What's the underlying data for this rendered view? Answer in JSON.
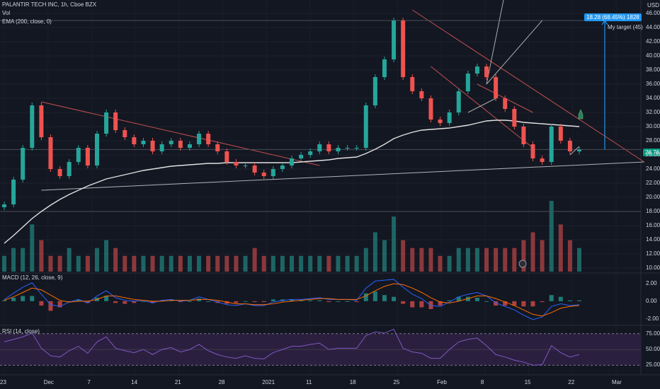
{
  "header": {
    "symbol": "PALANTIR TECH INC, 1h, Cboe BZX",
    "vol_label": "Vol",
    "ema_label": "EMA (200, close, 0)",
    "currency": "USD"
  },
  "macd_label": "MACD (12, 26, close, 9)",
  "rsi_label": "RSI (14, close)",
  "target_label": "My target (45)",
  "price_tag": "26.76",
  "measure_tag": "18.28 (68.45%) 1828",
  "colors": {
    "background": "#131722",
    "up": "#26a69a",
    "down": "#ef5350",
    "ema": "#e0e0e0",
    "trendline": "#c2504d",
    "support": "#b0b3ba",
    "macd": "#2962ff",
    "signal": "#ff6d00",
    "rsi": "#7e57c2",
    "rsi_band": "#2b1f3f",
    "target_line": "#2196f3",
    "price_tag": "#089981"
  },
  "chart_data": [
    {
      "type": "candlestick",
      "title": "PALANTIR TECH INC, 1h, Cboe BZX",
      "ylabel": "USD",
      "ylim": [
        9.5,
        47.5
      ],
      "y_ticks": [
        10,
        12,
        14,
        16,
        18,
        20,
        22,
        24,
        26,
        28,
        30,
        32,
        34,
        36,
        38,
        40,
        42,
        44,
        46
      ],
      "x_ticks": [
        "23",
        "Dec",
        "7",
        "14",
        "21",
        "28",
        "2021",
        "11",
        "18",
        "25",
        "Feb",
        "8",
        "15",
        "22",
        "Mar"
      ],
      "last_price": 26.76,
      "target_price": 45,
      "series": [
        {
          "name": "PALANTIR TECH INC",
          "values": [
            19.0,
            22.5,
            27.0,
            33.0,
            28.5,
            24.0,
            23.0,
            25.0,
            27.0,
            24.5,
            29.0,
            32.0,
            29.5,
            28.5,
            27.5,
            28.0,
            26.5,
            27.5,
            28.0,
            27.0,
            27.5,
            29.0,
            27.5,
            26.5,
            25.0,
            24.5,
            24.5,
            23.5,
            23.0,
            24.0,
            24.5,
            25.5,
            26.0,
            26.5,
            27.5,
            26.5,
            27.0,
            27.0,
            27.0,
            33.0,
            37.0,
            39.5,
            45.0,
            37.0,
            35.0,
            34.0,
            31.0,
            30.5,
            32.0,
            35.0,
            37.5,
            38.5,
            37.0,
            34.0,
            32.5,
            30.0,
            27.5,
            25.5,
            25.0,
            30.0,
            28.0,
            26.5,
            26.76
          ]
        },
        {
          "name": "EMA (200, close, 0)",
          "values": [
            13.5,
            14.6,
            15.8,
            17.0,
            18.0,
            18.9,
            19.7,
            20.4,
            21.0,
            21.6,
            22.1,
            22.6,
            22.9,
            23.2,
            23.5,
            23.8,
            24.0,
            24.2,
            24.4,
            24.5,
            24.6,
            24.7,
            24.8,
            24.8,
            24.9,
            24.9,
            24.9,
            24.9,
            24.9,
            24.9,
            24.9,
            24.9,
            25.0,
            25.1,
            25.2,
            25.3,
            25.5,
            25.6,
            25.7,
            26.2,
            26.8,
            27.5,
            28.3,
            28.8,
            29.2,
            29.5,
            29.6,
            29.7,
            29.8,
            30.0,
            30.2,
            30.5,
            30.8,
            30.9,
            30.9,
            30.8,
            30.6,
            30.5,
            30.4,
            30.3,
            30.2,
            30.1,
            30.0
          ]
        }
      ]
    },
    {
      "type": "bar",
      "title": "Vol",
      "series": [
        {
          "name": "Vol",
          "values": [
            2,
            3,
            3,
            6,
            4,
            2,
            2,
            3,
            2,
            2,
            3,
            4,
            3,
            2,
            2,
            2,
            2,
            2,
            2,
            2,
            2,
            2,
            2,
            2,
            2,
            2,
            2,
            3,
            2,
            2,
            2,
            2,
            2,
            2,
            2,
            2,
            2,
            2,
            2,
            3,
            5,
            4,
            7,
            4,
            3,
            3,
            3,
            2,
            2,
            3,
            3,
            3,
            3,
            3,
            3,
            3,
            4,
            5,
            4,
            9,
            6,
            4,
            3
          ]
        }
      ]
    },
    {
      "type": "line",
      "title": "MACD (12, 26, close, 9)",
      "ylim": [
        -2.6,
        2.9
      ],
      "y_ticks": [
        -2,
        0,
        2
      ],
      "series": [
        {
          "name": "MACD",
          "values": [
            0.2,
            0.9,
            1.6,
            2.1,
            0.8,
            -0.4,
            -0.6,
            -0.1,
            0.2,
            -0.2,
            0.6,
            1.2,
            0.4,
            0.1,
            0.0,
            0.1,
            -0.2,
            0.1,
            0.2,
            0.0,
            0.1,
            0.5,
            0.2,
            -0.1,
            -0.4,
            -0.5,
            -0.3,
            -0.5,
            -0.5,
            -0.1,
            0.1,
            0.2,
            0.2,
            0.3,
            0.4,
            0.2,
            0.2,
            0.2,
            0.1,
            1.5,
            2.3,
            2.4,
            2.5,
            1.6,
            0.8,
            0.3,
            -0.5,
            -0.6,
            -0.1,
            0.5,
            0.8,
            1.0,
            0.6,
            -0.2,
            -0.6,
            -1.0,
            -1.6,
            -2.1,
            -1.8,
            -0.6,
            -0.3,
            -0.5,
            -0.4
          ]
        },
        {
          "name": "Signal",
          "values": [
            0.1,
            0.5,
            1.0,
            1.5,
            1.3,
            0.7,
            0.1,
            -0.1,
            0.0,
            0.0,
            0.2,
            0.6,
            0.6,
            0.4,
            0.2,
            0.1,
            0.0,
            0.0,
            0.1,
            0.1,
            0.1,
            0.2,
            0.2,
            0.1,
            -0.1,
            -0.3,
            -0.3,
            -0.4,
            -0.4,
            -0.3,
            -0.1,
            0.0,
            0.1,
            0.2,
            0.3,
            0.3,
            0.2,
            0.2,
            0.2,
            0.6,
            1.2,
            1.7,
            2.0,
            1.9,
            1.5,
            1.0,
            0.4,
            -0.1,
            -0.2,
            0.0,
            0.3,
            0.6,
            0.6,
            0.3,
            -0.1,
            -0.5,
            -1.0,
            -1.5,
            -1.7,
            -1.3,
            -0.8,
            -0.6,
            -0.5
          ]
        }
      ]
    },
    {
      "type": "line",
      "title": "RSI (14, close)",
      "ylim": [
        12,
        86
      ],
      "y_ticks": [
        25,
        50,
        75
      ],
      "series": [
        {
          "name": "RSI",
          "values": [
            62,
            66,
            70,
            76,
            52,
            40,
            38,
            48,
            55,
            44,
            62,
            70,
            52,
            48,
            45,
            50,
            42,
            50,
            53,
            46,
            50,
            58,
            48,
            42,
            38,
            36,
            40,
            36,
            35,
            45,
            50,
            55,
            55,
            58,
            60,
            50,
            52,
            52,
            52,
            72,
            78,
            76,
            82,
            52,
            46,
            44,
            36,
            36,
            50,
            62,
            66,
            68,
            56,
            42,
            38,
            33,
            30,
            25,
            26,
            56,
            45,
            38,
            42
          ]
        }
      ]
    }
  ]
}
